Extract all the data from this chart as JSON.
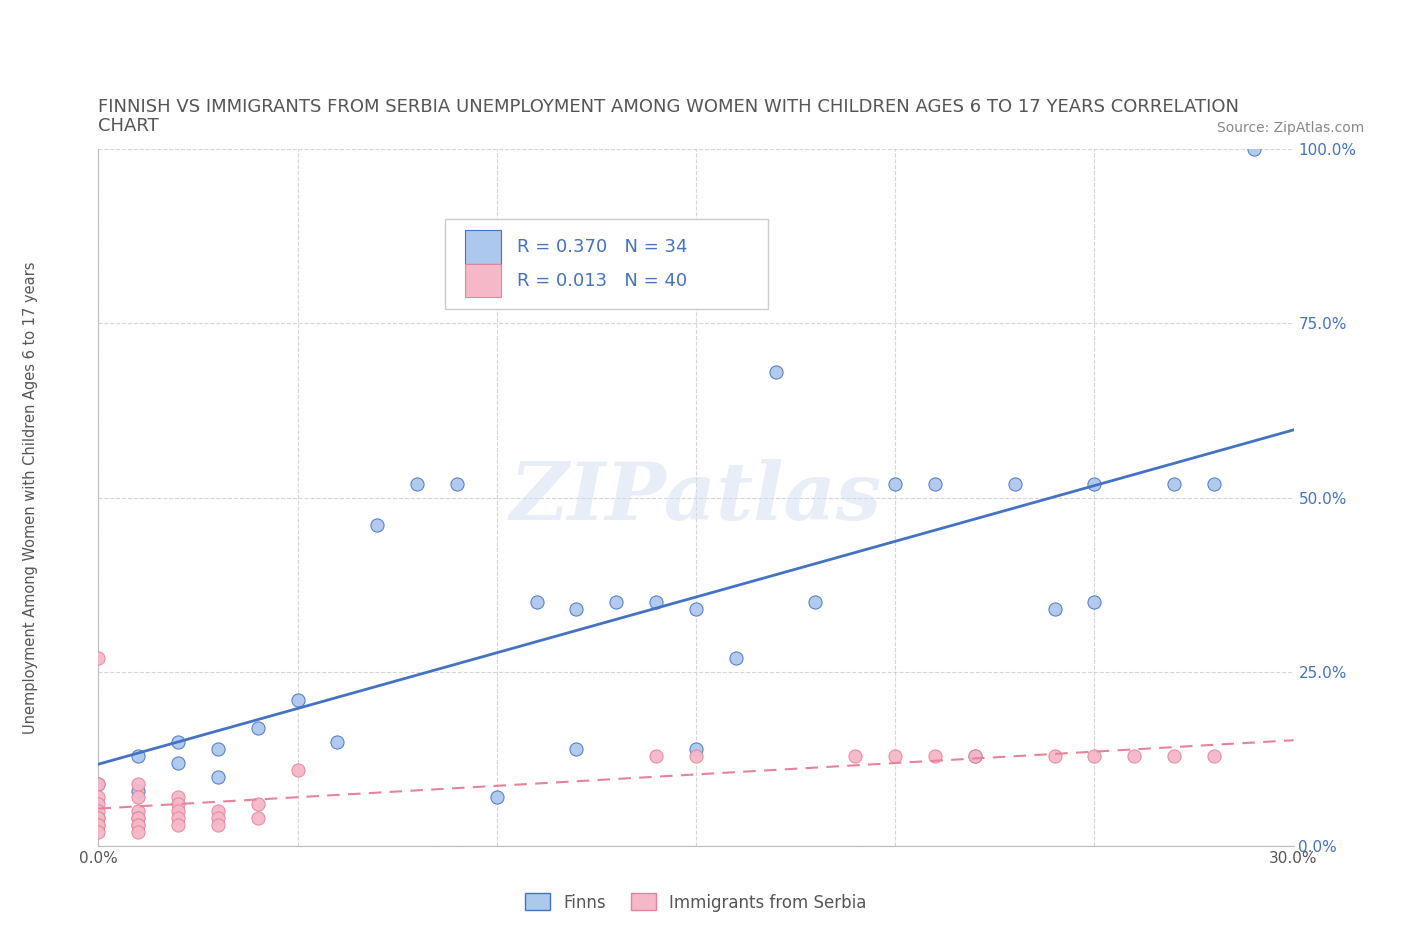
{
  "title_line1": "FINNISH VS IMMIGRANTS FROM SERBIA UNEMPLOYMENT AMONG WOMEN WITH CHILDREN AGES 6 TO 17 YEARS CORRELATION",
  "title_line2": "CHART",
  "source": "Source: ZipAtlas.com",
  "ylabel": "Unemployment Among Women with Children Ages 6 to 17 years",
  "xlim": [
    0.0,
    0.3
  ],
  "ylim": [
    0.0,
    1.0
  ],
  "xticks": [
    0.0,
    0.05,
    0.1,
    0.15,
    0.2,
    0.25,
    0.3
  ],
  "xticklabels": [
    "0.0%",
    "",
    "",
    "",
    "",
    "",
    "30.0%"
  ],
  "yticks": [
    0.0,
    0.25,
    0.5,
    0.75,
    1.0
  ],
  "yticklabels": [
    "0.0%",
    "25.0%",
    "50.0%",
    "75.0%",
    "100.0%"
  ],
  "finns_x": [
    0.0,
    0.01,
    0.01,
    0.02,
    0.02,
    0.03,
    0.03,
    0.04,
    0.05,
    0.06,
    0.07,
    0.08,
    0.09,
    0.1,
    0.11,
    0.12,
    0.12,
    0.13,
    0.14,
    0.15,
    0.15,
    0.16,
    0.17,
    0.18,
    0.2,
    0.21,
    0.22,
    0.23,
    0.24,
    0.25,
    0.25,
    0.27,
    0.28,
    0.29
  ],
  "finns_y": [
    0.09,
    0.13,
    0.08,
    0.15,
    0.12,
    0.14,
    0.1,
    0.17,
    0.21,
    0.15,
    0.46,
    0.52,
    0.52,
    0.07,
    0.35,
    0.34,
    0.14,
    0.35,
    0.35,
    0.34,
    0.14,
    0.27,
    0.68,
    0.35,
    0.52,
    0.52,
    0.13,
    0.52,
    0.34,
    0.35,
    0.52,
    0.52,
    0.52,
    1.0
  ],
  "serbia_x": [
    0.0,
    0.0,
    0.0,
    0.0,
    0.0,
    0.0,
    0.0,
    0.0,
    0.0,
    0.0,
    0.01,
    0.01,
    0.01,
    0.01,
    0.01,
    0.01,
    0.01,
    0.01,
    0.02,
    0.02,
    0.02,
    0.02,
    0.02,
    0.03,
    0.03,
    0.03,
    0.04,
    0.04,
    0.05,
    0.14,
    0.15,
    0.19,
    0.2,
    0.21,
    0.22,
    0.24,
    0.25,
    0.26,
    0.27,
    0.28
  ],
  "serbia_y": [
    0.27,
    0.09,
    0.07,
    0.06,
    0.05,
    0.04,
    0.04,
    0.03,
    0.03,
    0.02,
    0.09,
    0.07,
    0.05,
    0.04,
    0.04,
    0.03,
    0.03,
    0.02,
    0.07,
    0.06,
    0.05,
    0.04,
    0.03,
    0.05,
    0.04,
    0.03,
    0.06,
    0.04,
    0.11,
    0.13,
    0.13,
    0.13,
    0.13,
    0.13,
    0.13,
    0.13,
    0.13,
    0.13,
    0.13,
    0.13
  ],
  "finn_color": "#adc8ed",
  "serbia_color": "#f5b8c8",
  "finn_edge_color": "#4472c4",
  "serbia_edge_color": "#e8829a",
  "finn_line_color": "#4472c4",
  "serbia_line_color": "#f5b8c8",
  "serbia_line_dash_color": "#e8829a",
  "finn_R": 0.37,
  "finn_N": 34,
  "serbia_R": 0.013,
  "serbia_N": 40,
  "watermark": "ZIPatlas",
  "background_color": "#ffffff",
  "grid_color": "#cccccc",
  "title_color": "#555555",
  "axis_label_color": "#555555",
  "tick_label_color": "#555555",
  "stat_color": "#4472c4",
  "right_tick_color": "#4472c4"
}
